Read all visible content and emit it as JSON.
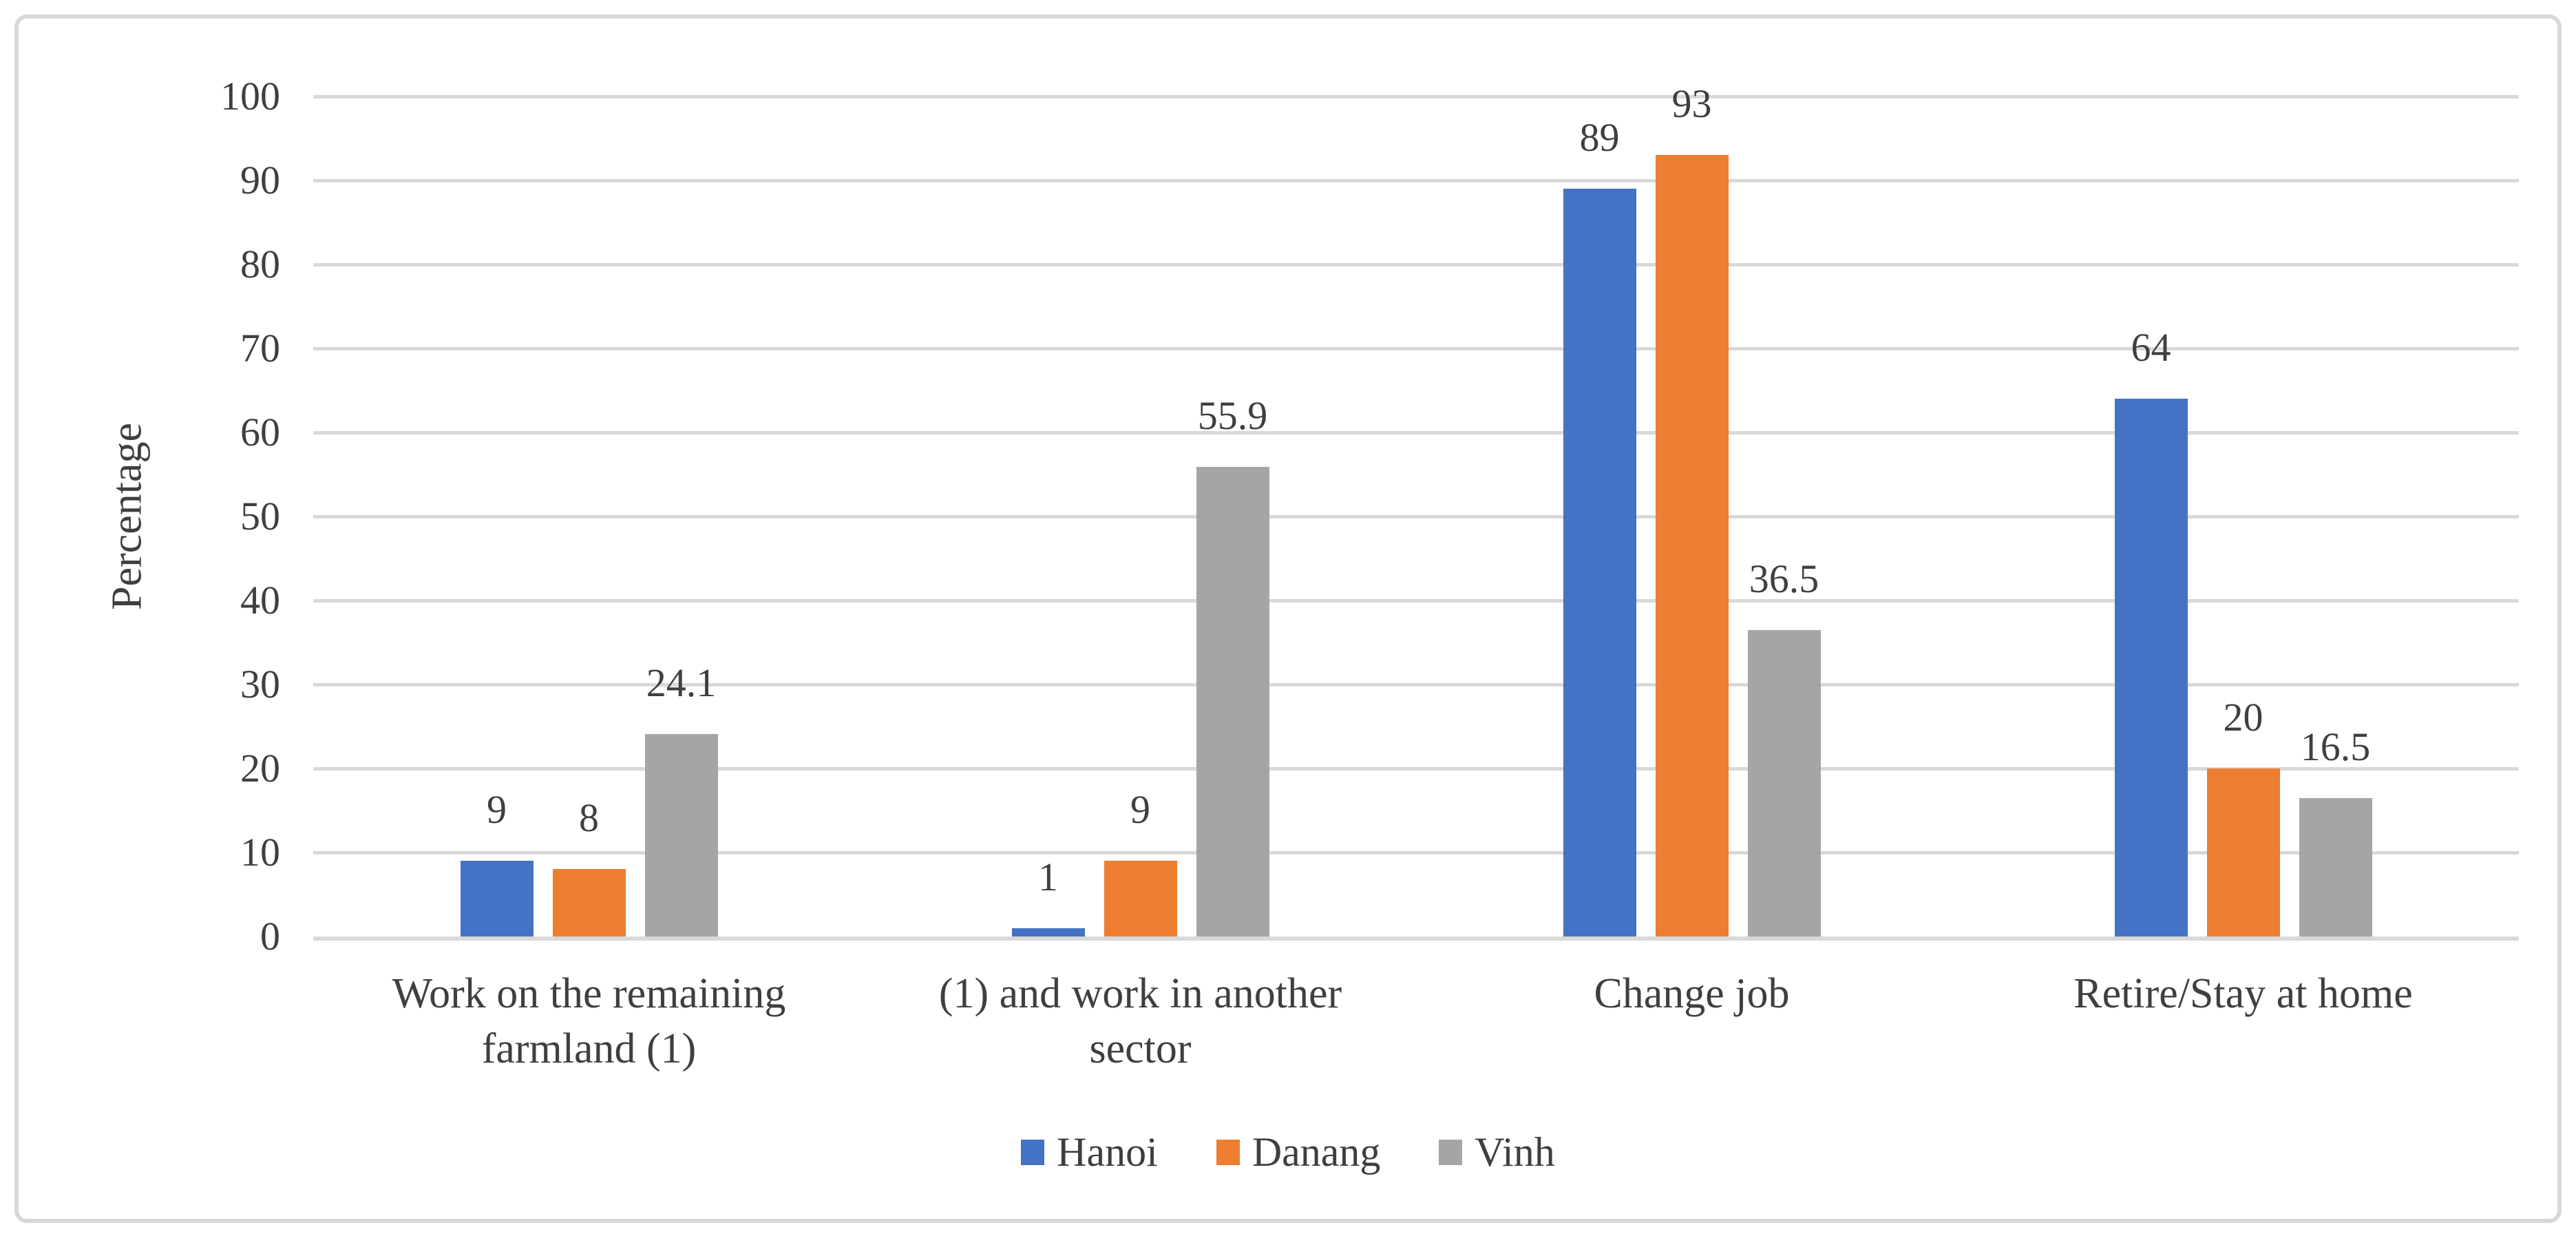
{
  "chart_data": {
    "type": "bar",
    "title": "",
    "ylabel": "Percentage",
    "xlabel": "",
    "ylim": [
      0,
      100
    ],
    "ytick_interval": 10,
    "ytick_labels": [
      "0",
      "10",
      "20",
      "30",
      "40",
      "50",
      "60",
      "70",
      "80",
      "90",
      "100"
    ],
    "grid": true,
    "legend_position": "bottom",
    "categories": [
      "Work on the remaining farmland (1)",
      "(1) and work in another sector",
      "Change job",
      "Retire/Stay at home"
    ],
    "series": [
      {
        "name": "Hanoi",
        "color": "#4472C4",
        "values": [
          9,
          1,
          89,
          64
        ],
        "labels": [
          "9",
          "1",
          "89",
          "64"
        ]
      },
      {
        "name": "Danang",
        "color": "#ED7D31",
        "values": [
          8,
          9,
          93,
          20
        ],
        "labels": [
          "8",
          "9",
          "93",
          "20"
        ]
      },
      {
        "name": "Vinh",
        "color": "#A5A5A5",
        "values": [
          24.1,
          55.9,
          36.5,
          16.5
        ],
        "labels": [
          "24.1",
          "55.9",
          "36.5",
          "16.5"
        ]
      }
    ],
    "colors": {
      "gridline": "#D9D9D9",
      "axis_line": "#D9D9D9",
      "frame_border": "#D8D8D8",
      "text": "#3F3F3F",
      "background": "#FFFFFF"
    }
  }
}
